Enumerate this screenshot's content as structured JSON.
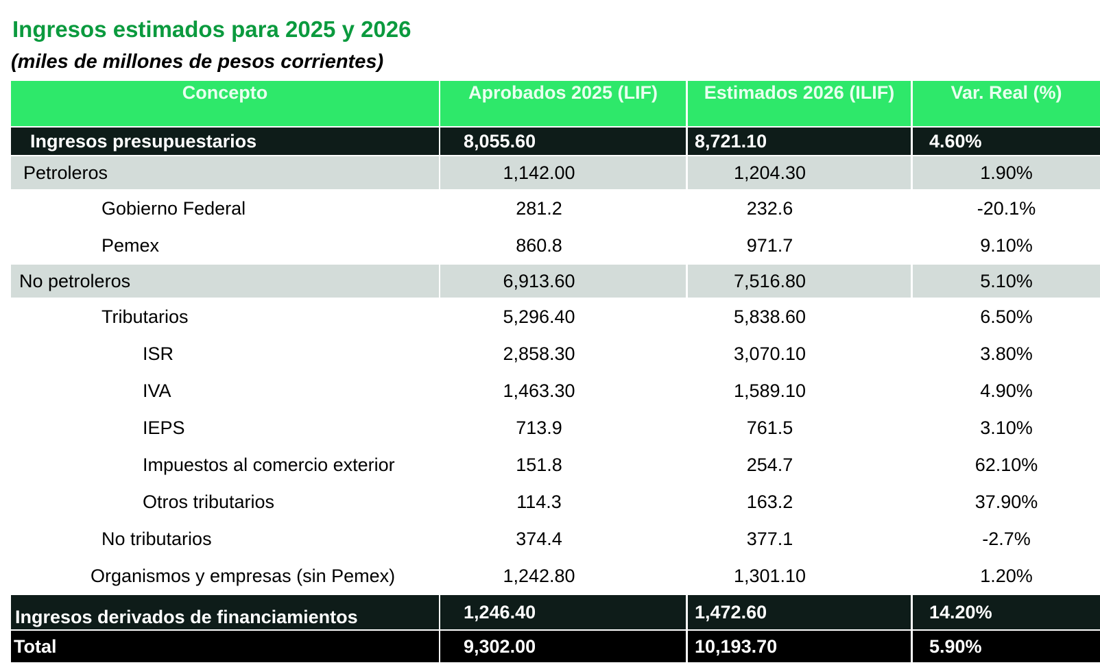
{
  "title": "Ingresos estimados para 2025 y 2026",
  "subtitle": "(miles de millones de pesos corrientes)",
  "headers": [
    "Concepto",
    "Aprobados 2025 (LIF)",
    "Estimados 2026 (ILIF)",
    "Var. Real (%)"
  ],
  "rows": [
    {
      "label": "Ingresos presupuestarios",
      "v2025": "8,055.60",
      "v2026": "8,721.10",
      "var": "4.60%"
    },
    {
      "label": "Petroleros",
      "v2025": "1,142.00",
      "v2026": "1,204.30",
      "var": "1.90%"
    },
    {
      "label": "Gobierno Federal",
      "v2025": "281.2",
      "v2026": "232.6",
      "var": "-20.1%"
    },
    {
      "label": "Pemex",
      "v2025": "860.8",
      "v2026": "971.7",
      "var": "9.10%"
    },
    {
      "label": "No petroleros",
      "v2025": "6,913.60",
      "v2026": "7,516.80",
      "var": "5.10%"
    },
    {
      "label": "Tributarios",
      "v2025": "5,296.40",
      "v2026": "5,838.60",
      "var": "6.50%"
    },
    {
      "label": "ISR",
      "v2025": "2,858.30",
      "v2026": "3,070.10",
      "var": "3.80%"
    },
    {
      "label": "IVA",
      "v2025": "1,463.30",
      "v2026": "1,589.10",
      "var": "4.90%"
    },
    {
      "label": "IEPS",
      "v2025": "713.9",
      "v2026": "761.5",
      "var": "3.10%"
    },
    {
      "label": "Impuestos al comercio exterior",
      "v2025": "151.8",
      "v2026": "254.7",
      "var": "62.10%"
    },
    {
      "label": "Otros tributarios",
      "v2025": "114.3",
      "v2026": "163.2",
      "var": "37.90%"
    },
    {
      "label": "No tributarios",
      "v2025": "374.4",
      "v2026": "377.1",
      "var": "-2.7%"
    },
    {
      "label": "Organismos y empresas (sin Pemex)",
      "v2025": "1,242.80",
      "v2026": "1,301.10",
      "var": "1.20%"
    },
    {
      "label": "Ingresos derivados de financiamientos",
      "v2025": "1,246.40",
      "v2026": "1,472.60",
      "var": "14.20%"
    },
    {
      "label": "Total",
      "v2025": "9,302.00",
      "v2026": "10,193.70",
      "var": "5.90%"
    }
  ]
}
